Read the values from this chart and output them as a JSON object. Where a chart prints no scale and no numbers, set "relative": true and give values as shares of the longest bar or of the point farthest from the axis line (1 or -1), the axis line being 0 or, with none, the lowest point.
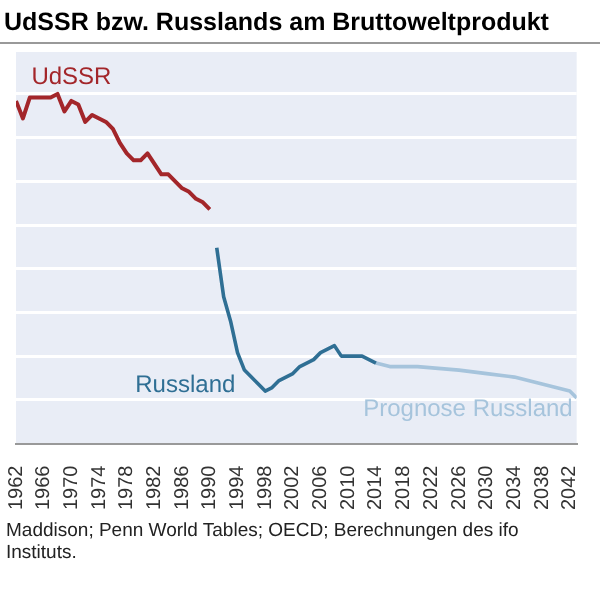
{
  "chart_data": {
    "type": "line",
    "title": "UdSSR bzw. Russlands am Bruttoweltprodukt",
    "relative": true,
    "grid": "y",
    "legend": false,
    "xlim": [
      1962,
      2043
    ],
    "xticks": [
      1962,
      1966,
      1970,
      1974,
      1978,
      1982,
      1986,
      1990,
      1994,
      1998,
      2002,
      2006,
      2010,
      2014,
      2018,
      2022,
      2026,
      2030,
      2034,
      2038,
      2042
    ],
    "annotations": [
      "Maddison; Penn World Tables; OECD; Berechnungen des ifo Instituts."
    ],
    "series": [
      {
        "name": "UdSSR",
        "color": "#a3262a",
        "x": [
          1962,
          1963,
          1964,
          1965,
          1966,
          1967,
          1968,
          1969,
          1970,
          1971,
          1972,
          1973,
          1974,
          1975,
          1976,
          1977,
          1978,
          1979,
          1980,
          1981,
          1982,
          1983,
          1984,
          1985,
          1986,
          1987,
          1988,
          1989,
          1990
        ],
        "values": [
          0.98,
          0.93,
          0.99,
          0.99,
          0.99,
          0.99,
          1,
          0.95,
          0.98,
          0.97,
          0.92,
          0.94,
          0.93,
          0.92,
          0.9,
          0.86,
          0.83,
          0.81,
          0.81,
          0.83,
          0.8,
          0.77,
          0.77,
          0.75,
          0.73,
          0.72,
          0.7,
          0.69,
          0.67
        ]
      },
      {
        "name": "Russland",
        "color": "#2f6f94",
        "x": [
          1991,
          1992,
          1993,
          1994,
          1995,
          1996,
          1997,
          1998,
          1999,
          2000,
          2001,
          2002,
          2003,
          2004,
          2005,
          2006,
          2007,
          2008,
          2009,
          2010,
          2011,
          2012,
          2013,
          2014
        ],
        "values": [
          0.56,
          0.42,
          0.35,
          0.26,
          0.21,
          0.19,
          0.17,
          0.15,
          0.16,
          0.18,
          0.19,
          0.2,
          0.22,
          0.23,
          0.24,
          0.26,
          0.27,
          0.28,
          0.25,
          0.25,
          0.25,
          0.25,
          0.24,
          0.23
        ]
      },
      {
        "name": "Prognose Russland",
        "color": "#a6c4dc",
        "x": [
          2014,
          2016,
          2020,
          2026,
          2030,
          2034,
          2038,
          2042,
          2043
        ],
        "values": [
          0.23,
          0.22,
          0.22,
          0.21,
          0.2,
          0.19,
          0.17,
          0.15,
          0.13
        ]
      }
    ]
  }
}
